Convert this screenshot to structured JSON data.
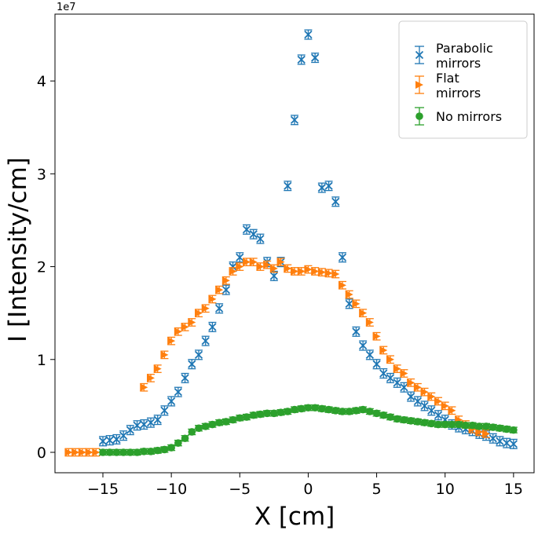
{
  "chart_data": {
    "type": "scatter",
    "title": "",
    "xlabel": "X [cm]",
    "ylabel": "I [Intensity/cm]",
    "offset_label": "1e7",
    "xlim": [
      -18.5,
      16.5
    ],
    "ylim": [
      -0.22,
      4.72
    ],
    "x_ticks": [
      -15,
      -10,
      -5,
      0,
      5,
      10,
      15
    ],
    "x_tick_labels": [
      "−15",
      "−10",
      "−5",
      "0",
      "5",
      "10",
      "15"
    ],
    "y_ticks": [
      0,
      1,
      2,
      3,
      4
    ],
    "y_tick_labels": [
      "0",
      "1",
      "2",
      "3",
      "4"
    ],
    "grid": false,
    "legend_position": "top-right",
    "colors": {
      "parabolic": "#1f77b4",
      "flat": "#ff7f0e",
      "none": "#2ca02c"
    },
    "series": [
      {
        "name": "Parabolic mirrors",
        "legend_lines": [
          "Parabolic",
          " mirrors"
        ],
        "marker": "x",
        "color": "#1f77b4",
        "x": [
          -15.0,
          -14.5,
          -14.0,
          -13.5,
          -13.0,
          -12.5,
          -12.0,
          -11.5,
          -11.0,
          -10.5,
          -10.0,
          -9.5,
          -9.0,
          -8.5,
          -8.0,
          -7.5,
          -7.0,
          -6.5,
          -6.0,
          -5.5,
          -5.0,
          -4.5,
          -4.0,
          -3.5,
          -3.0,
          -2.5,
          -2.0,
          -1.5,
          -1.0,
          -0.5,
          0.0,
          0.5,
          1.0,
          1.5,
          2.0,
          2.5,
          3.0,
          3.5,
          4.0,
          4.5,
          5.0,
          5.5,
          6.0,
          6.5,
          7.0,
          7.5,
          8.0,
          8.5,
          9.0,
          9.5,
          10.0,
          10.5,
          11.0,
          11.5,
          12.0,
          12.5,
          13.0,
          13.5,
          14.0,
          14.5,
          15.0
        ],
        "y": [
          0.12,
          0.13,
          0.14,
          0.18,
          0.24,
          0.29,
          0.3,
          0.32,
          0.35,
          0.45,
          0.55,
          0.65,
          0.8,
          0.95,
          1.05,
          1.2,
          1.35,
          1.55,
          1.75,
          2.0,
          2.1,
          2.4,
          2.35,
          2.3,
          2.05,
          1.9,
          2.05,
          2.87,
          3.58,
          4.23,
          4.5,
          4.25,
          2.85,
          2.87,
          2.7,
          2.1,
          1.6,
          1.3,
          1.15,
          1.05,
          0.95,
          0.85,
          0.8,
          0.75,
          0.7,
          0.6,
          0.55,
          0.5,
          0.45,
          0.4,
          0.35,
          0.3,
          0.27,
          0.25,
          0.23,
          0.2,
          0.18,
          0.15,
          0.12,
          0.1,
          0.09
        ],
        "yerr": 0.05
      },
      {
        "name": "Flat mirrors",
        "legend_lines": [
          "Flat",
          " mirrors"
        ],
        "marker": "triangle-right",
        "color": "#ff7f0e",
        "x": [
          -17.5,
          -17.0,
          -16.5,
          -16.0,
          -15.5,
          -12.0,
          -11.5,
          -11.0,
          -10.5,
          -10.0,
          -9.5,
          -9.0,
          -8.5,
          -8.0,
          -7.5,
          -7.0,
          -6.5,
          -6.0,
          -5.5,
          -5.0,
          -4.5,
          -4.0,
          -3.5,
          -3.0,
          -2.5,
          -2.0,
          -1.5,
          -1.0,
          -0.5,
          0.0,
          0.5,
          1.0,
          1.5,
          2.0,
          2.5,
          3.0,
          3.5,
          4.0,
          4.5,
          5.0,
          5.5,
          6.0,
          6.5,
          7.0,
          7.5,
          8.0,
          8.5,
          9.0,
          9.5,
          10.0,
          10.5,
          11.0,
          11.5,
          12.0,
          12.5,
          13.0
        ],
        "y": [
          0.0,
          0.0,
          0.0,
          0.0,
          0.0,
          0.7,
          0.8,
          0.9,
          1.05,
          1.2,
          1.3,
          1.35,
          1.4,
          1.5,
          1.55,
          1.65,
          1.75,
          1.85,
          1.95,
          2.0,
          2.05,
          2.05,
          2.0,
          2.02,
          1.98,
          2.05,
          1.98,
          1.95,
          1.95,
          1.97,
          1.95,
          1.94,
          1.93,
          1.92,
          1.8,
          1.7,
          1.6,
          1.5,
          1.4,
          1.25,
          1.1,
          1.0,
          0.9,
          0.85,
          0.75,
          0.7,
          0.65,
          0.6,
          0.55,
          0.5,
          0.45,
          0.35,
          0.3,
          0.25,
          0.22,
          0.2
        ],
        "yerr": 0.04
      },
      {
        "name": "No mirrors",
        "legend_lines": [
          "No mirrors"
        ],
        "marker": "circle",
        "color": "#2ca02c",
        "x": [
          -15.0,
          -14.5,
          -14.0,
          -13.5,
          -13.0,
          -12.5,
          -12.0,
          -11.5,
          -11.0,
          -10.5,
          -10.0,
          -9.5,
          -9.0,
          -8.5,
          -8.0,
          -7.5,
          -7.0,
          -6.5,
          -6.0,
          -5.5,
          -5.0,
          -4.5,
          -4.0,
          -3.5,
          -3.0,
          -2.5,
          -2.0,
          -1.5,
          -1.0,
          -0.5,
          0.0,
          0.5,
          1.0,
          1.5,
          2.0,
          2.5,
          3.0,
          3.5,
          4.0,
          4.5,
          5.0,
          5.5,
          6.0,
          6.5,
          7.0,
          7.5,
          8.0,
          8.5,
          9.0,
          9.5,
          10.0,
          10.5,
          11.0,
          11.5,
          12.0,
          12.5,
          13.0,
          13.5,
          14.0,
          14.5,
          15.0
        ],
        "y": [
          0.0,
          0.0,
          0.0,
          0.0,
          0.0,
          0.0,
          0.01,
          0.01,
          0.02,
          0.03,
          0.05,
          0.1,
          0.15,
          0.22,
          0.26,
          0.28,
          0.3,
          0.32,
          0.33,
          0.35,
          0.37,
          0.38,
          0.4,
          0.41,
          0.42,
          0.42,
          0.43,
          0.44,
          0.46,
          0.47,
          0.48,
          0.48,
          0.47,
          0.46,
          0.45,
          0.44,
          0.44,
          0.45,
          0.46,
          0.44,
          0.42,
          0.4,
          0.38,
          0.36,
          0.35,
          0.34,
          0.33,
          0.32,
          0.31,
          0.3,
          0.3,
          0.3,
          0.3,
          0.29,
          0.29,
          0.28,
          0.28,
          0.27,
          0.26,
          0.25,
          0.24
        ],
        "yerr": 0.03
      }
    ]
  }
}
